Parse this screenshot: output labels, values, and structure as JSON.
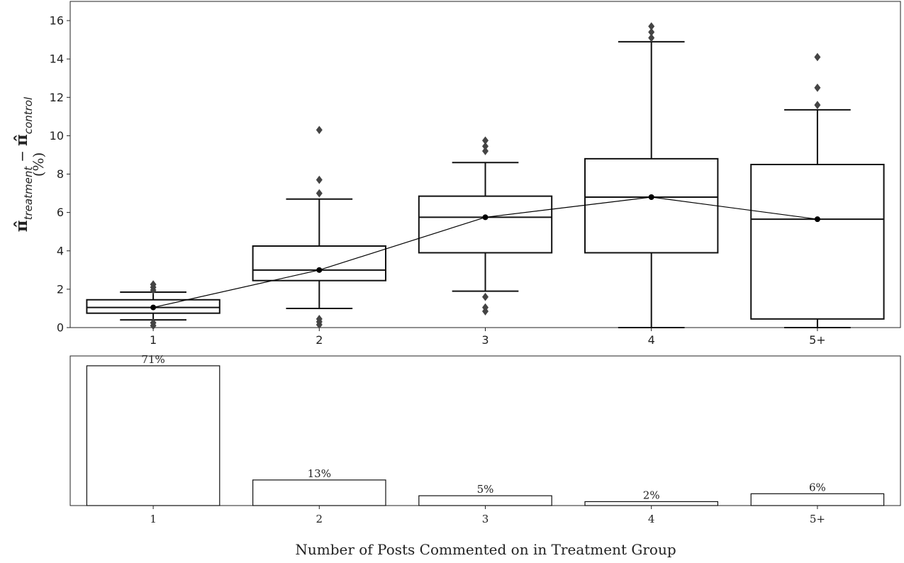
{
  "chart_data": [
    {
      "type": "box",
      "categories": [
        "1",
        "2",
        "3",
        "4",
        "5+"
      ],
      "ylabel_main": "π̂",
      "ylabel_main_sub": "treatment",
      "ylabel_minus": "−",
      "ylabel_second": "π̂",
      "ylabel_second_sub": "control",
      "ylabel_unit": "(%)",
      "ylim": [
        0,
        17
      ],
      "yticks": [
        "0",
        "2",
        "4",
        "6",
        "8",
        "10",
        "12",
        "14",
        "16"
      ],
      "boxes": [
        {
          "category": "1",
          "whisker_low": 0.4,
          "q1": 0.75,
          "median": 1.05,
          "q3": 1.45,
          "whisker_high": 1.85,
          "outliers": [
            0.1,
            0.25,
            1.95,
            2.1,
            2.25
          ],
          "mean": 1.05
        },
        {
          "category": "2",
          "whisker_low": 1.0,
          "q1": 2.45,
          "median": 3.0,
          "q3": 4.25,
          "whisker_high": 6.7,
          "outliers": [
            0.15,
            0.3,
            0.45,
            7.0,
            7.7,
            10.3
          ],
          "mean": 3.0
        },
        {
          "category": "3",
          "whisker_low": 1.9,
          "q1": 3.9,
          "median": 5.75,
          "q3": 6.85,
          "whisker_high": 8.6,
          "outliers": [
            0.85,
            1.05,
            1.6,
            9.2,
            9.45,
            9.75
          ],
          "mean": 5.75
        },
        {
          "category": "4",
          "whisker_low": 0.0,
          "q1": 3.9,
          "median": 6.8,
          "q3": 8.8,
          "whisker_high": 14.9,
          "outliers": [
            15.1,
            15.4,
            15.7
          ],
          "mean": 6.8
        },
        {
          "category": "5+",
          "whisker_low": 0.0,
          "q1": 0.45,
          "median": 5.65,
          "q3": 8.5,
          "whisker_high": 11.35,
          "outliers": [
            11.6,
            12.5,
            14.1
          ],
          "mean": 5.65
        }
      ],
      "mean_line": true
    },
    {
      "type": "bar",
      "categories": [
        "1",
        "2",
        "3",
        "4",
        "5+"
      ],
      "values": [
        71,
        13,
        5,
        2,
        6
      ],
      "value_labels": [
        "71%",
        "13%",
        "5%",
        "2%",
        "6%"
      ],
      "ylim": [
        0,
        76
      ],
      "xlabel": "Number of Posts Commented on in Treatment Group"
    }
  ]
}
